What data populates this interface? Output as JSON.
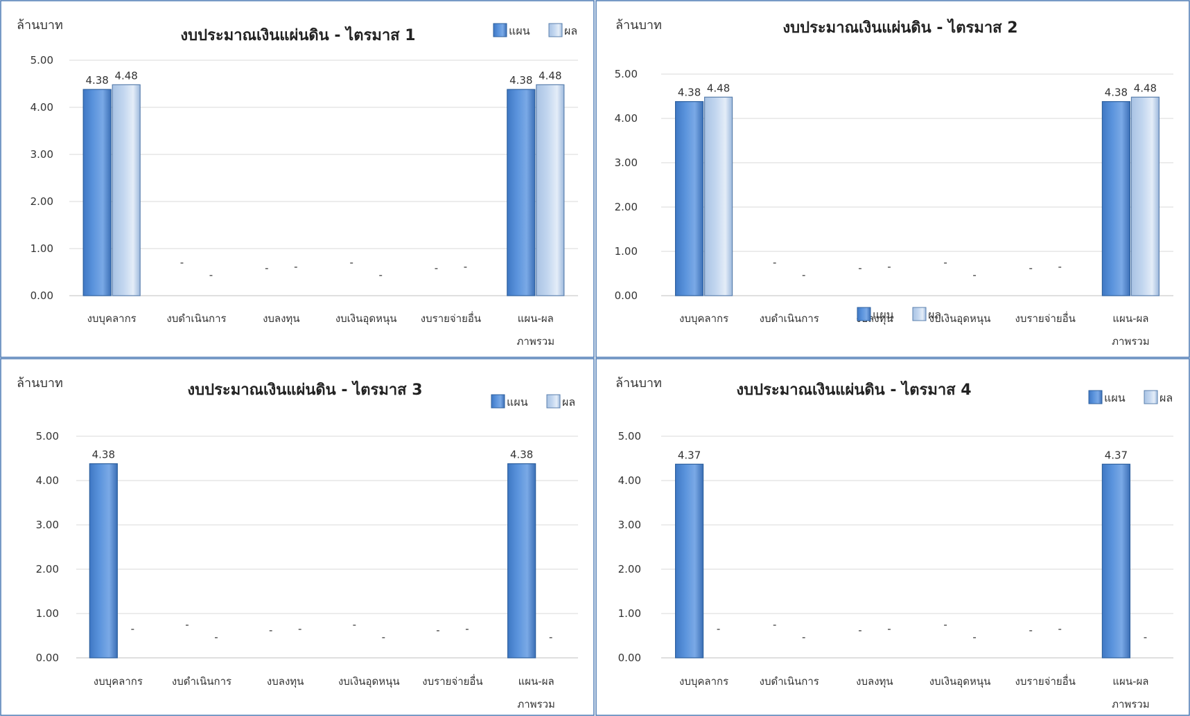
{
  "colors": {
    "plan": "#5a93dc",
    "plan_edge": "#2c5f9e",
    "result": "#c2d6ef",
    "result_edge": "#5a7fad",
    "border": "#4a78b4",
    "grid": "#d9d9d9"
  },
  "chart_data": [
    {
      "type": "bar",
      "title": "งบประมาณเงินแผ่นดิน - ไตรมาส 1",
      "ylabel": "ล้านบาท",
      "ylim": [
        0,
        5
      ],
      "yticks": [
        "0.00",
        "1.00",
        "2.00",
        "3.00",
        "4.00",
        "5.00"
      ],
      "legend_position": "top-right",
      "categories": [
        "งบบุคลากร",
        "งบดำเนินการ",
        "งบลงทุน",
        "งบเงินอุดหนุน",
        "งบรายจ่ายอื่น",
        "แผน-ผล ภาพรวม"
      ],
      "series": [
        {
          "name": "แผน",
          "values": [
            4.38,
            0,
            0,
            0,
            0,
            4.38
          ],
          "labels": [
            "4.38",
            "-",
            "-",
            "-",
            "-",
            "4.38"
          ]
        },
        {
          "name": "ผล",
          "values": [
            4.48,
            0,
            0,
            0,
            0,
            4.48
          ],
          "labels": [
            "4.48",
            "-",
            "-",
            "-",
            "-",
            "4.48"
          ]
        }
      ]
    },
    {
      "type": "bar",
      "title": "งบประมาณเงินแผ่นดิน - ไตรมาส 2",
      "ylabel": "ล้านบาท",
      "ylim": [
        0,
        5
      ],
      "yticks": [
        "0.00",
        "1.00",
        "2.00",
        "3.00",
        "4.00",
        "5.00"
      ],
      "legend_position": "bottom",
      "categories": [
        "งบบุคลากร",
        "งบดำเนินการ",
        "งบลงทุน",
        "งบเงินอุดหนุน",
        "งบรายจ่ายอื่น",
        "แผน-ผล ภาพรวม"
      ],
      "series": [
        {
          "name": "แผน",
          "values": [
            4.38,
            0,
            0,
            0,
            0,
            4.38
          ],
          "labels": [
            "4.38",
            "-",
            "-",
            "-",
            "-",
            "4.38"
          ]
        },
        {
          "name": "ผล",
          "values": [
            4.48,
            0,
            0,
            0,
            0,
            4.48
          ],
          "labels": [
            "4.48",
            "-",
            "-",
            "-",
            "-",
            "4.48"
          ]
        }
      ]
    },
    {
      "type": "bar",
      "title": "งบประมาณเงินแผ่นดิน - ไตรมาส 3",
      "ylabel": "ล้านบาท",
      "ylim": [
        0,
        5
      ],
      "yticks": [
        "0.00",
        "1.00",
        "2.00",
        "3.00",
        "4.00",
        "5.00"
      ],
      "legend_position": "top-right",
      "categories": [
        "งบบุคลากร",
        "งบดำเนินการ",
        "งบลงทุน",
        "งบเงินอุดหนุน",
        "งบรายจ่ายอื่น",
        "แผน-ผล ภาพรวม"
      ],
      "series": [
        {
          "name": "แผน",
          "values": [
            4.38,
            0,
            0,
            0,
            0,
            4.38
          ],
          "labels": [
            "4.38",
            "-",
            "-",
            "-",
            "-",
            "4.38"
          ]
        },
        {
          "name": "ผล",
          "values": [
            0,
            0,
            0,
            0,
            0,
            0
          ],
          "labels": [
            "-",
            "-",
            "-",
            "-",
            "-",
            "-"
          ]
        }
      ]
    },
    {
      "type": "bar",
      "title": "งบประมาณเงินแผ่นดิน - ไตรมาส 4",
      "ylabel": "ล้านบาท",
      "ylim": [
        0,
        5
      ],
      "yticks": [
        "0.00",
        "1.00",
        "2.00",
        "3.00",
        "4.00",
        "5.00"
      ],
      "legend_position": "top-right",
      "categories": [
        "งบบุคลากร",
        "งบดำเนินการ",
        "งบลงทุน",
        "งบเงินอุดหนุน",
        "งบรายจ่ายอื่น",
        "แผน-ผล ภาพรวม"
      ],
      "series": [
        {
          "name": "แผน",
          "values": [
            4.37,
            0,
            0,
            0,
            0,
            4.37
          ],
          "labels": [
            "4.37",
            "-",
            "-",
            "-",
            "-",
            "4.37"
          ]
        },
        {
          "name": "ผล",
          "values": [
            0,
            0,
            0,
            0,
            0,
            0
          ],
          "labels": [
            "-",
            "-",
            "-",
            "-",
            "-",
            "-"
          ]
        }
      ]
    }
  ]
}
